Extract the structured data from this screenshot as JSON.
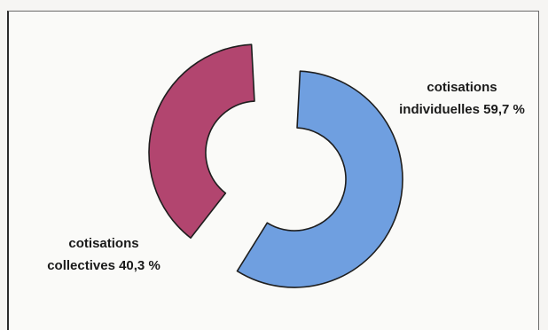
{
  "chart_data": {
    "type": "pie",
    "variant": "exploded-donut",
    "title": "",
    "slices": [
      {
        "key": "individuelles",
        "label_line1": "cotisations",
        "label_line2": "individuelles 59,7 %",
        "value": 59.7,
        "color": "#6f9fe0"
      },
      {
        "key": "collectives",
        "label_line1": "cotisations",
        "label_line2": "collectives 40,3 %",
        "value": 40.3,
        "color": "#b2456f"
      }
    ]
  }
}
